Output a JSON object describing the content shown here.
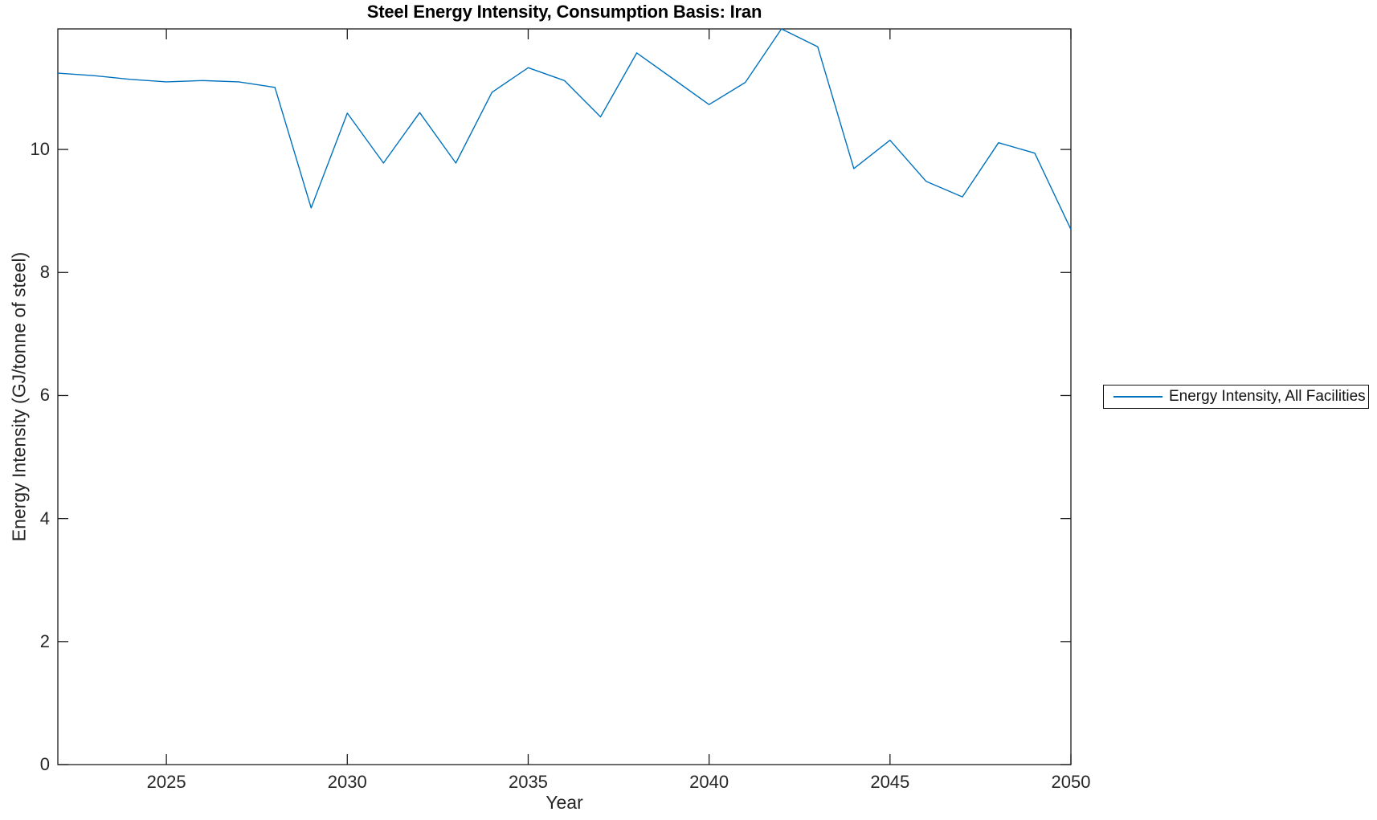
{
  "figure": {
    "background": "#ffffff"
  },
  "chart_data": {
    "type": "line",
    "title": "Steel Energy Intensity, Consumption Basis: Iran",
    "xlabel": "Year",
    "ylabel": "Energy Intensity (GJ/tonne of steel)",
    "xlim": [
      2022,
      2050
    ],
    "ylim": [
      0,
      11.96
    ],
    "xticks": [
      2025,
      2030,
      2035,
      2040,
      2045,
      2050
    ],
    "yticks": [
      0,
      2,
      4,
      6,
      8,
      10
    ],
    "grid": false,
    "box": true,
    "tick_direction": "in",
    "legend": {
      "position": "outside-right",
      "entries": [
        "Energy Intensity, All Facilities"
      ]
    },
    "line_color": "#0072BD",
    "axis_color": "#1a1a1a",
    "text_color": "#262626",
    "x": [
      2022,
      2023,
      2024,
      2025,
      2026,
      2027,
      2028,
      2029,
      2030,
      2031,
      2032,
      2033,
      2034,
      2035,
      2036,
      2037,
      2038,
      2039,
      2040,
      2041,
      2042,
      2043,
      2044,
      2045,
      2046,
      2047,
      2048,
      2049,
      2050
    ],
    "series": [
      {
        "name": "Energy Intensity, All Facilities",
        "values": [
          11.24,
          11.2,
          11.14,
          11.1,
          11.12,
          11.1,
          11.01,
          9.05,
          10.59,
          9.78,
          10.6,
          9.78,
          10.93,
          11.33,
          11.12,
          10.53,
          11.57,
          11.15,
          10.73,
          11.09,
          11.96,
          11.67,
          9.69,
          10.15,
          9.48,
          9.23,
          10.11,
          9.94,
          8.7
        ]
      }
    ]
  }
}
